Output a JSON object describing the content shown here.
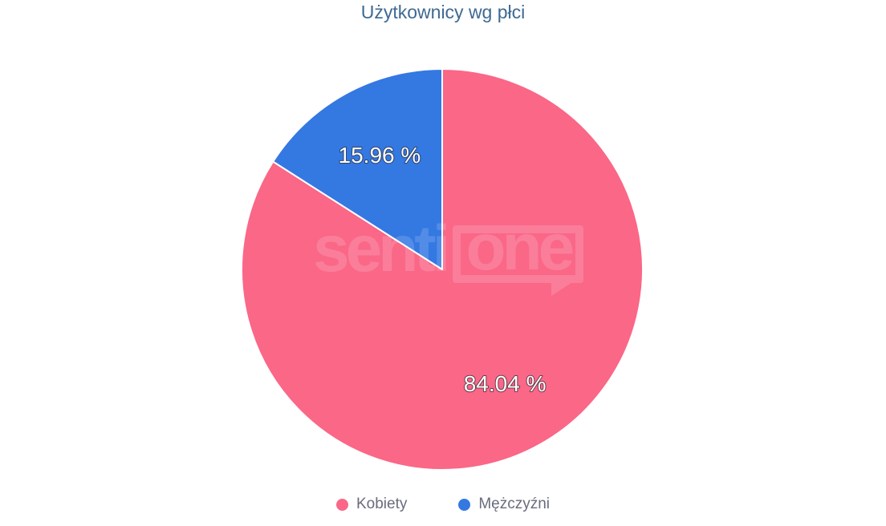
{
  "chart_data": {
    "type": "pie",
    "title": "Użytkownicy wg płci",
    "legend_position": "bottom",
    "start_angle_deg": 0,
    "direction": "clockwise",
    "unit": "%",
    "slices": [
      {
        "label": "Kobiety",
        "value": 84.04,
        "display": "84.04 %",
        "color": "#FA6787"
      },
      {
        "label": "Mężczyźni",
        "value": 15.96,
        "display": "15.96 %",
        "color": "#3478E2"
      }
    ],
    "colors": {
      "title_text": "#3E6A92",
      "legend_text": "#696C7C",
      "label_text": "#FFFFFF",
      "label_outline": "#2B2B35",
      "slice_border": "#FFFFFF",
      "background": "#FFFFFF"
    }
  },
  "watermark": {
    "part1": "senti",
    "part2": "one"
  }
}
